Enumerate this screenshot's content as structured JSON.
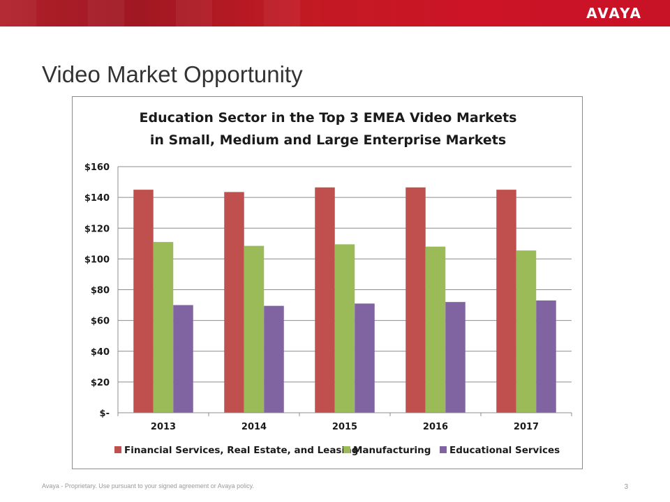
{
  "header": {
    "logo_text": "AVAYA",
    "bar_color": "#c8102e"
  },
  "slide": {
    "title": "Video Market Opportunity"
  },
  "footer": {
    "text": "Avaya - Proprietary.  Use pursuant to your signed agreement or Avaya policy.",
    "page_number": "3"
  },
  "chart_data": {
    "type": "bar",
    "title_line1": "Education Sector in the Top 3 EMEA Video Markets",
    "title_line2": "in Small, Medium and Large Enterprise Markets",
    "categories": [
      "2013",
      "2014",
      "2015",
      "2016",
      "2017"
    ],
    "series": [
      {
        "name": "Financial Services, Real Estate, and Leasing",
        "color": "#c0504d",
        "values": [
          145,
          143.5,
          146.5,
          146.5,
          145
        ]
      },
      {
        "name": "Manufacturing",
        "color": "#9bbb59",
        "values": [
          111,
          108.5,
          109.5,
          108,
          105.5
        ]
      },
      {
        "name": "Educational Services",
        "color": "#8064a2",
        "values": [
          70,
          69.5,
          71,
          72,
          73
        ]
      }
    ],
    "y_ticks": [
      "$-",
      "$20",
      "$40",
      "$60",
      "$80",
      "$100",
      "$120",
      "$140",
      "$160"
    ],
    "ylim": [
      0,
      160
    ],
    "grid": true,
    "legend_position": "bottom"
  }
}
